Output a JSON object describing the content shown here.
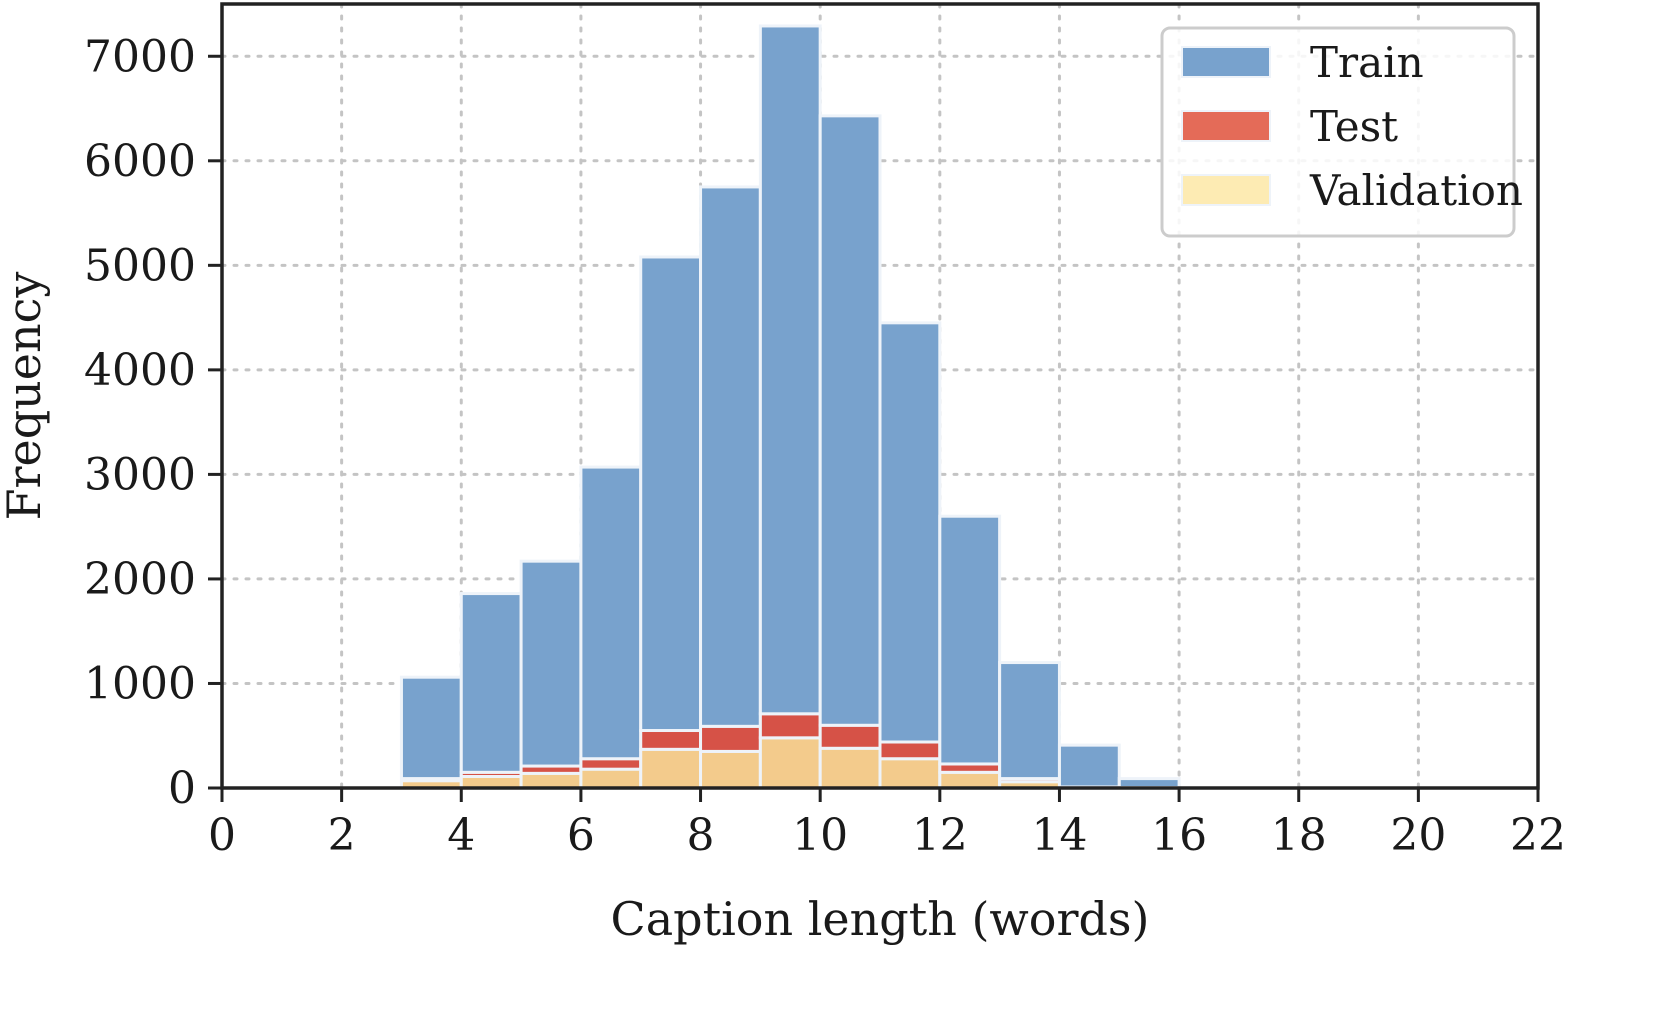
{
  "chart_data": {
    "type": "bar",
    "stacked": true,
    "xlabel": "Caption length (words)",
    "ylabel": "Frequency",
    "xlim": [
      0,
      22
    ],
    "ylim": [
      0,
      7500
    ],
    "xticks": [
      0,
      2,
      4,
      6,
      8,
      10,
      12,
      14,
      16,
      18,
      20,
      22
    ],
    "yticks": [
      0,
      1000,
      2000,
      3000,
      4000,
      5000,
      6000,
      7000
    ],
    "grid": true,
    "legend_position": "top-right",
    "bins": [
      3,
      4,
      5,
      6,
      7,
      8,
      9,
      10,
      11,
      12,
      13,
      14,
      15
    ],
    "bin_width": 1,
    "series": [
      {
        "name": "Validation",
        "color": "#f3cb8c",
        "values": [
          70,
          110,
          140,
          180,
          370,
          350,
          480,
          380,
          280,
          150,
          60,
          0,
          0
        ]
      },
      {
        "name": "Test",
        "color": "#d65247",
        "values": [
          20,
          40,
          70,
          100,
          180,
          240,
          230,
          220,
          160,
          80,
          30,
          10,
          5
        ]
      },
      {
        "name": "Train",
        "color": "#78a2cd",
        "values": [
          970,
          1710,
          1960,
          2790,
          4530,
          5160,
          6580,
          5830,
          4010,
          2370,
          1110,
          400,
          85
        ]
      }
    ],
    "legend": [
      {
        "name": "Train",
        "color": "#78a2cd"
      },
      {
        "name": "Test",
        "color": "#e46b58"
      },
      {
        "name": "Validation",
        "color": "#fdebb3"
      }
    ]
  }
}
